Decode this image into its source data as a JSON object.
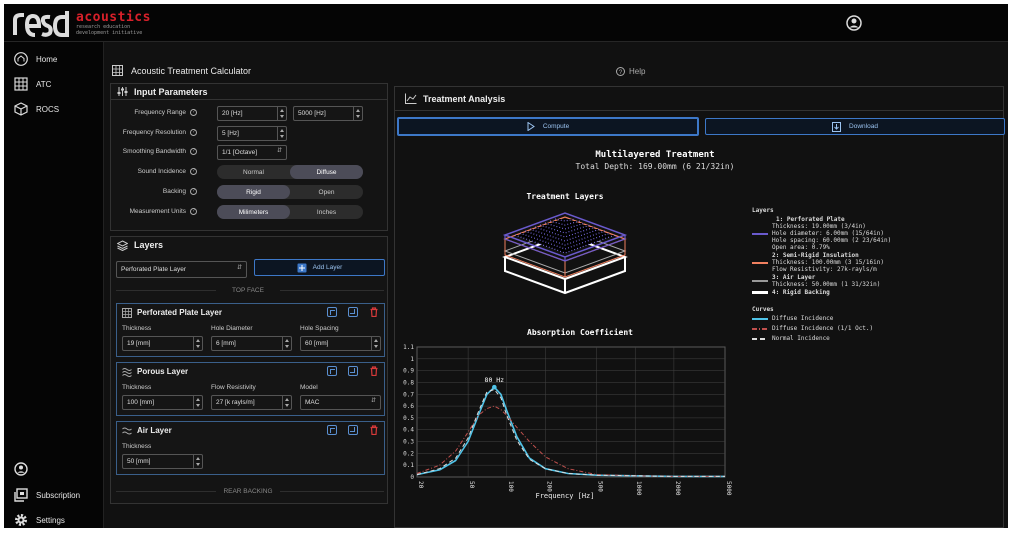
{
  "brand": {
    "logo_text": "resd",
    "name": "acoustics",
    "tagline": "research education development initiative"
  },
  "nav": {
    "items": [
      {
        "label": "Home"
      },
      {
        "label": "ATC"
      },
      {
        "label": "ROCS"
      }
    ],
    "bottom": [
      {
        "label": "Subscription"
      },
      {
        "label": "Settings"
      }
    ]
  },
  "header": {
    "title": "Acoustic Treatment Calculator",
    "help": "Help"
  },
  "input_params": {
    "title": "Input Parameters",
    "frequency_range": {
      "label": "Frequency Range",
      "from": "20 [Hz]",
      "to": "5000 [Hz]"
    },
    "frequency_resolution": {
      "label": "Frequency Resolution",
      "value": "5 [Hz]"
    },
    "smoothing": {
      "label": "Smoothing Bandwidth",
      "value": "1/1 [Octave]"
    },
    "sound_incidence": {
      "label": "Sound Incidence",
      "options": [
        "Normal",
        "Diffuse"
      ],
      "selected": "Diffuse"
    },
    "backing": {
      "label": "Backing",
      "options": [
        "Rigid",
        "Open"
      ],
      "selected": "Rigid"
    },
    "units": {
      "label": "Measurement Units",
      "options": [
        "Milimeters",
        "Inches"
      ],
      "selected": "Milimeters"
    }
  },
  "layers": {
    "title": "Layers",
    "select_value": "Perforated Plate Layer",
    "add_label": "Add Layer",
    "top_face": "TOP FACE",
    "rear_backing": "REAR BACKING",
    "cards": [
      {
        "title": "Perforated Plate Layer",
        "fields": [
          {
            "label": "Thickness",
            "value": "19 [mm]"
          },
          {
            "label": "Hole Diameter",
            "value": "6 [mm]"
          },
          {
            "label": "Hole Spacing",
            "value": "60 [mm]"
          }
        ]
      },
      {
        "title": "Porous Layer",
        "fields": [
          {
            "label": "Thickness",
            "value": "100 [mm]"
          },
          {
            "label": "Flow Resistivity",
            "value": "27 [k rayls/m]"
          },
          {
            "label": "Model",
            "value": "MAC"
          }
        ]
      },
      {
        "title": "Air Layer",
        "fields": [
          {
            "label": "Thickness",
            "value": "50 [mm]"
          }
        ]
      }
    ]
  },
  "analysis": {
    "title": "Treatment Analysis",
    "compute": "Compute",
    "download": "Download",
    "heading": "Multilayered Treatment",
    "total_depth": "Total Depth: 169.00mm (6 21/32in)",
    "layers_title": "Treatment Layers",
    "absorption_title": "Absorption Coefficient",
    "peak_label": "80 Hz"
  },
  "legend": {
    "layers_heading": "Layers",
    "layer1": [
      "1: Perforated Plate",
      "Thickness: 19.00mm (3/4in)",
      "Hole diameter: 6.00mm (15/64in)",
      "Hole spacing: 60.00mm (2 23/64in)",
      "Open area: 0.79%"
    ],
    "layer2": [
      "2: Semi-Rigid Insulation",
      "Thickness: 100.00mm (3 15/16in)",
      "Flow Resistivity: 27k-rayls/m"
    ],
    "layer3": [
      "3: Air Layer",
      "Thickness: 50.00mm (1 31/32in)"
    ],
    "layer4": [
      "4: Rigid Backing"
    ],
    "curves_heading": "Curves",
    "curves": [
      "Diffuse Incidence",
      "Diffuse Incidence (1/1 Oct.)",
      "Normal Incidence"
    ],
    "colors": {
      "plate": "#6a5acd",
      "porous": "#f08060",
      "air": "#999999",
      "backing": "#ffffff",
      "diffuse": "#4fc3e8",
      "octave": "#c0504d",
      "normal": "#dddddd"
    }
  },
  "chart_data": {
    "type": "line",
    "title": "Absorption Coefficient",
    "xlabel": "Frequency [Hz]",
    "ylabel": "",
    "x_scale": "log",
    "xlim": [
      20,
      5000
    ],
    "ylim": [
      0,
      1.1
    ],
    "x_ticks": [
      "20",
      "50",
      "100",
      "200",
      "500",
      "1000",
      "2000",
      "5000"
    ],
    "y_ticks": [
      "0",
      "0.1",
      "0.2",
      "0.3",
      "0.4",
      "0.5",
      "0.6",
      "0.7",
      "0.8",
      "0.9",
      "1",
      "1.1"
    ],
    "x": [
      20,
      30,
      40,
      50,
      60,
      70,
      80,
      90,
      100,
      120,
      150,
      200,
      300,
      500,
      1000,
      2000,
      5000
    ],
    "series": [
      {
        "name": "Diffuse Incidence",
        "values": [
          0.02,
          0.06,
          0.14,
          0.3,
          0.52,
          0.7,
          0.76,
          0.7,
          0.56,
          0.34,
          0.16,
          0.07,
          0.03,
          0.015,
          0.01,
          0.005,
          0.005
        ]
      },
      {
        "name": "Diffuse Incidence (1/1 Oct.)",
        "values": [
          0.03,
          0.1,
          0.22,
          0.38,
          0.52,
          0.58,
          0.6,
          0.57,
          0.52,
          0.42,
          0.3,
          0.17,
          0.07,
          0.02,
          0.01,
          0.005,
          0.005
        ]
      },
      {
        "name": "Normal Incidence",
        "values": [
          0.02,
          0.07,
          0.16,
          0.33,
          0.55,
          0.72,
          0.74,
          0.67,
          0.52,
          0.31,
          0.15,
          0.07,
          0.03,
          0.015,
          0.01,
          0.005,
          0.005
        ]
      }
    ]
  }
}
